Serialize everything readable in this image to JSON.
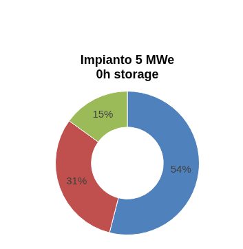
{
  "chart_data": {
    "type": "doughnut",
    "title": [
      "Impianto 5 MWe",
      "0h storage"
    ],
    "values": [
      54,
      31,
      15
    ],
    "value_labels": [
      "54%",
      "31%",
      "15%"
    ],
    "colors": [
      "#4f81bd",
      "#c0504d",
      "#9bbb59"
    ],
    "data_labels": true
  }
}
